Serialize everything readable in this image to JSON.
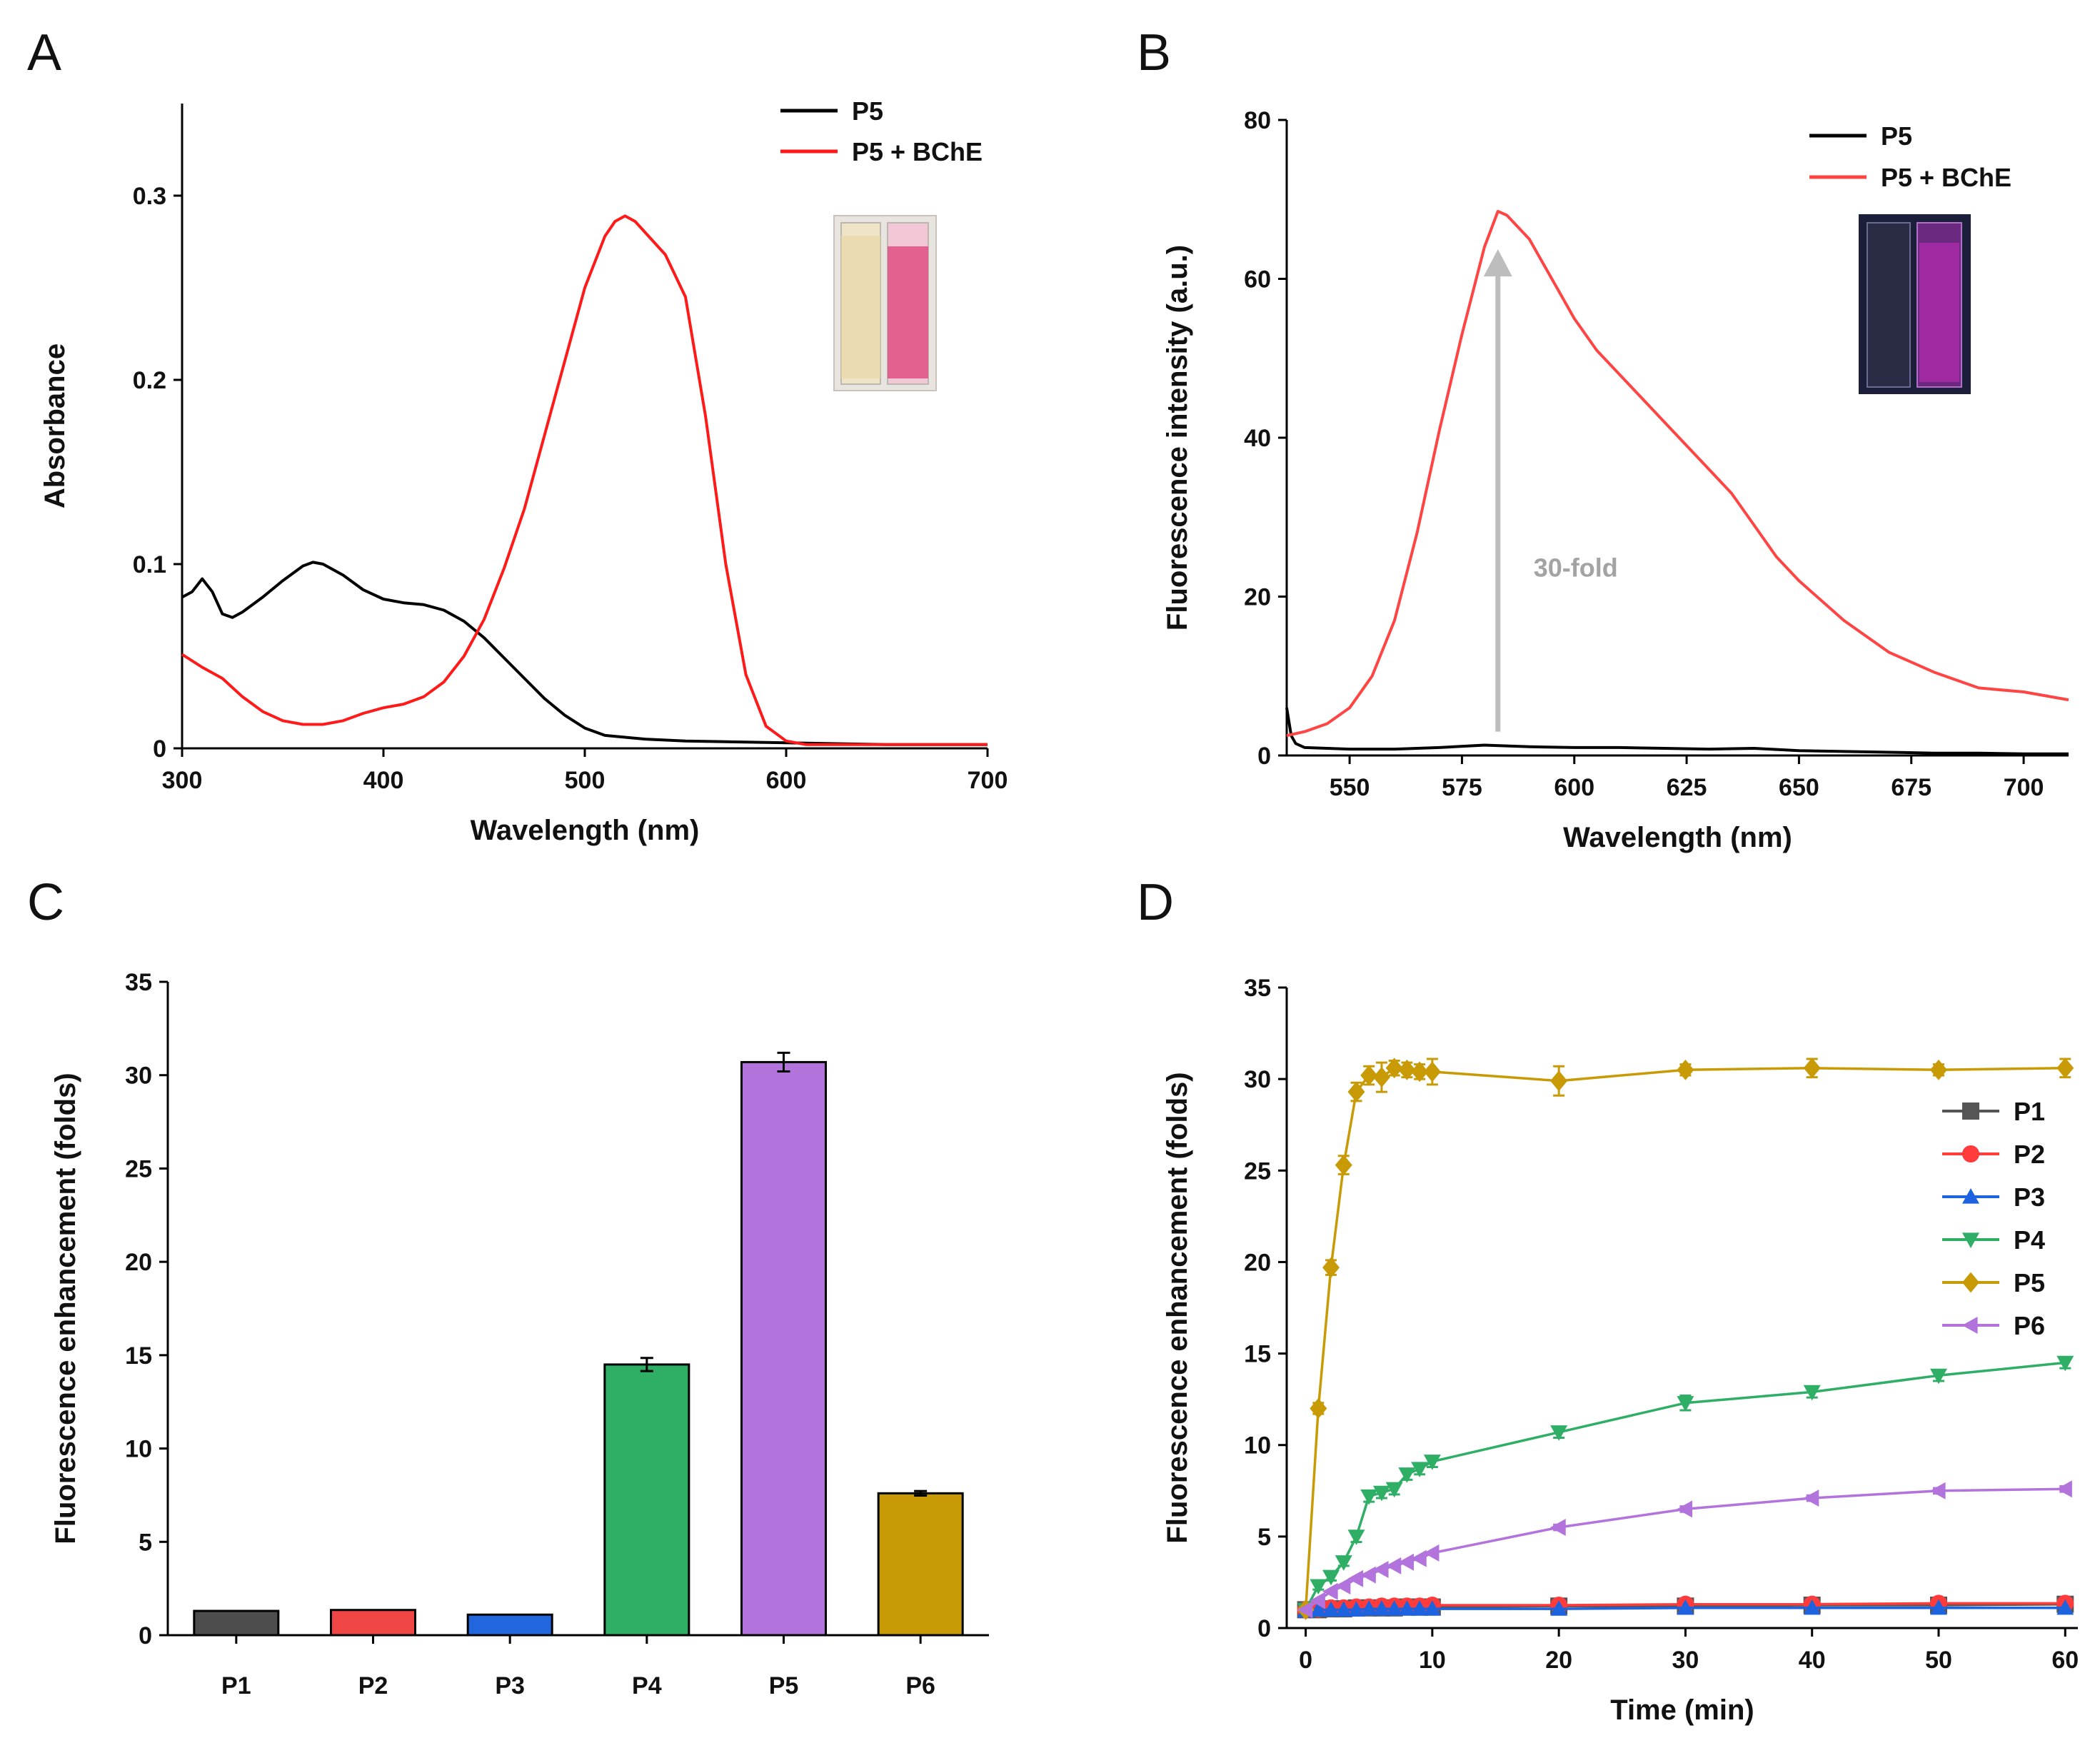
{
  "figure": {
    "panel_letters": [
      "A",
      "B",
      "C",
      "D"
    ]
  },
  "chart_data": [
    {
      "panel": "A",
      "type": "line",
      "title": "",
      "xlabel": "Wavelength (nm)",
      "ylabel": "Absorbance",
      "xlim": [
        300,
        700
      ],
      "ylim": [
        0,
        0.35
      ],
      "xticks": [
        300,
        400,
        500,
        600,
        700
      ],
      "yticks": [
        0,
        0.1,
        0.2,
        0.3
      ],
      "ytick_labels": [
        "0",
        "0.1",
        "0.2",
        "0.3"
      ],
      "legend_position": "top-right",
      "inset": "photo of two cuvettes: pale yellow (P5) and pink (P5 + BChE)",
      "series": [
        {
          "name": "P5",
          "color": "#000000",
          "x": [
            300,
            305,
            310,
            315,
            320,
            325,
            330,
            340,
            350,
            360,
            365,
            370,
            380,
            390,
            400,
            410,
            420,
            430,
            440,
            450,
            460,
            470,
            480,
            490,
            500,
            510,
            520,
            530,
            550,
            600,
            650,
            700
          ],
          "y": [
            0.082,
            0.085,
            0.092,
            0.085,
            0.073,
            0.071,
            0.074,
            0.082,
            0.091,
            0.099,
            0.101,
            0.1,
            0.094,
            0.086,
            0.081,
            0.079,
            0.078,
            0.075,
            0.069,
            0.06,
            0.049,
            0.038,
            0.027,
            0.018,
            0.011,
            0.007,
            0.006,
            0.005,
            0.004,
            0.003,
            0.002,
            0.002
          ]
        },
        {
          "name": "P5 + BChE",
          "color": "#ff1a1a",
          "x": [
            300,
            310,
            320,
            330,
            340,
            350,
            360,
            370,
            380,
            390,
            400,
            410,
            420,
            430,
            440,
            450,
            460,
            470,
            480,
            490,
            500,
            510,
            515,
            520,
            525,
            530,
            540,
            550,
            560,
            570,
            580,
            590,
            600,
            610,
            620,
            650,
            700
          ],
          "y": [
            0.051,
            0.044,
            0.038,
            0.028,
            0.02,
            0.015,
            0.013,
            0.013,
            0.015,
            0.019,
            0.022,
            0.024,
            0.028,
            0.036,
            0.05,
            0.07,
            0.098,
            0.13,
            0.17,
            0.21,
            0.25,
            0.278,
            0.286,
            0.289,
            0.286,
            0.28,
            0.268,
            0.245,
            0.18,
            0.1,
            0.04,
            0.012,
            0.004,
            0.002,
            0.002,
            0.002,
            0.002
          ]
        }
      ]
    },
    {
      "panel": "B",
      "type": "line",
      "title": "",
      "xlabel": "Wavelength (nm)",
      "ylabel": "Fluorescence intensity (a.u.)",
      "xlim": [
        536,
        710
      ],
      "ylim": [
        0,
        80
      ],
      "xticks": [
        550,
        575,
        600,
        625,
        650,
        675,
        700
      ],
      "yticks": [
        0,
        20,
        40,
        60,
        80
      ],
      "legend_position": "top-right",
      "annotation": "30-fold",
      "annotation_arrow": {
        "x": 583,
        "y_from": 3,
        "y_to": 63
      },
      "inset": "photo of two cuvettes under UV light: dark (P5) and magenta glow (P5 + BChE)",
      "series": [
        {
          "name": "P5",
          "color": "#000000",
          "x": [
            536,
            537,
            538,
            540,
            545,
            550,
            560,
            570,
            580,
            590,
            600,
            610,
            620,
            630,
            640,
            650,
            660,
            670,
            680,
            690,
            700,
            710
          ],
          "y": [
            6,
            2.5,
            1.5,
            1.0,
            0.9,
            0.8,
            0.8,
            1.0,
            1.3,
            1.1,
            1.0,
            1.0,
            0.9,
            0.8,
            0.9,
            0.6,
            0.5,
            0.4,
            0.3,
            0.3,
            0.2,
            0.2
          ]
        },
        {
          "name": "P5 + BChE",
          "color": "#ff4444",
          "x": [
            536,
            540,
            545,
            550,
            555,
            560,
            565,
            570,
            575,
            580,
            583,
            585,
            590,
            595,
            600,
            605,
            610,
            615,
            620,
            625,
            630,
            635,
            640,
            645,
            650,
            660,
            670,
            680,
            690,
            700,
            710
          ],
          "y": [
            2.5,
            3,
            4,
            6,
            10,
            17,
            28,
            41,
            53,
            64,
            68.5,
            68,
            65,
            60,
            55,
            51,
            48,
            45,
            42,
            39,
            36,
            33,
            29,
            25,
            22,
            17,
            13,
            10.5,
            8.5,
            8,
            7
          ]
        }
      ]
    },
    {
      "panel": "C",
      "type": "bar",
      "title": "",
      "xlabel": "",
      "ylabel": "Fluorescence enhancement (folds)",
      "ylim": [
        0,
        35
      ],
      "yticks": [
        0,
        5,
        10,
        15,
        20,
        25,
        30,
        35
      ],
      "categories": [
        "P1",
        "P2",
        "P3",
        "P4",
        "P5",
        "P6"
      ],
      "values": [
        1.3,
        1.35,
        1.1,
        14.5,
        30.7,
        7.6
      ],
      "errors": [
        0.05,
        0.05,
        0.05,
        0.35,
        0.5,
        0.12
      ],
      "colors": [
        "#4d4d4d",
        "#f04545",
        "#2266dd",
        "#2fae66",
        "#b273dd",
        "#c89a05"
      ]
    },
    {
      "panel": "D",
      "type": "line",
      "title": "",
      "xlabel": "Time (min)",
      "ylabel": "Fluorescence enhancement (folds)",
      "xlim": [
        -1.5,
        61
      ],
      "ylim": [
        0,
        35
      ],
      "xticks": [
        0,
        10,
        20,
        30,
        40,
        50,
        60
      ],
      "yticks": [
        0,
        5,
        10,
        15,
        20,
        25,
        30,
        35
      ],
      "legend_position": "right",
      "series": [
        {
          "name": "P1",
          "marker": "square",
          "color": "#555555",
          "x": [
            0,
            1,
            2,
            3,
            4,
            5,
            6,
            7,
            8,
            9,
            10,
            20,
            30,
            40,
            50,
            60
          ],
          "y": [
            1.0,
            1.0,
            1.05,
            1.05,
            1.1,
            1.1,
            1.1,
            1.1,
            1.15,
            1.15,
            1.15,
            1.2,
            1.2,
            1.25,
            1.25,
            1.3
          ]
        },
        {
          "name": "P2",
          "marker": "circle",
          "color": "#ff3b3b",
          "x": [
            0,
            1,
            2,
            3,
            4,
            5,
            6,
            7,
            8,
            9,
            10,
            20,
            30,
            40,
            50,
            60
          ],
          "y": [
            1.0,
            1.05,
            1.1,
            1.1,
            1.15,
            1.15,
            1.2,
            1.2,
            1.2,
            1.2,
            1.25,
            1.25,
            1.3,
            1.3,
            1.35,
            1.35
          ]
        },
        {
          "name": "P3",
          "marker": "triangle-up",
          "color": "#1d63e0",
          "x": [
            0,
            1,
            2,
            3,
            4,
            5,
            6,
            7,
            8,
            9,
            10,
            20,
            30,
            40,
            50,
            60
          ],
          "y": [
            0.95,
            1.0,
            1.0,
            1.0,
            1.0,
            1.05,
            1.05,
            1.05,
            1.05,
            1.05,
            1.05,
            1.05,
            1.1,
            1.1,
            1.1,
            1.1
          ]
        },
        {
          "name": "P4",
          "marker": "triangle-down",
          "color": "#2fae66",
          "x": [
            0,
            1,
            2,
            3,
            4,
            5,
            6,
            7,
            8,
            9,
            10,
            20,
            30,
            40,
            50,
            60
          ],
          "y": [
            1.0,
            2.3,
            2.8,
            3.6,
            5.0,
            7.2,
            7.4,
            7.6,
            8.4,
            8.7,
            9.1,
            10.7,
            12.3,
            12.9,
            13.8,
            14.5
          ],
          "errors": [
            0.1,
            0.2,
            0.2,
            0.2,
            0.3,
            0.3,
            0.3,
            0.3,
            0.3,
            0.3,
            0.3,
            0.3,
            0.4,
            0.3,
            0.3,
            0.3
          ]
        },
        {
          "name": "P5",
          "marker": "diamond",
          "color": "#c89a05",
          "x": [
            0,
            1,
            2,
            3,
            4,
            5,
            6,
            7,
            8,
            9,
            10,
            20,
            30,
            40,
            50,
            60
          ],
          "y": [
            1.0,
            12.0,
            19.7,
            25.3,
            29.3,
            30.2,
            30.1,
            30.6,
            30.5,
            30.4,
            30.4,
            29.9,
            30.5,
            30.6,
            30.5,
            30.6
          ],
          "errors": [
            0.1,
            0.3,
            0.4,
            0.5,
            0.5,
            0.5,
            0.8,
            0.4,
            0.4,
            0.4,
            0.7,
            0.8,
            0.3,
            0.5,
            0.3,
            0.5
          ]
        },
        {
          "name": "P6",
          "marker": "triangle-left",
          "color": "#b273dd",
          "x": [
            0,
            1,
            2,
            3,
            4,
            5,
            6,
            7,
            8,
            9,
            10,
            20,
            30,
            40,
            50,
            60
          ],
          "y": [
            1.0,
            1.5,
            2.0,
            2.3,
            2.7,
            2.9,
            3.2,
            3.4,
            3.6,
            3.8,
            4.1,
            5.5,
            6.5,
            7.1,
            7.5,
            7.6
          ],
          "errors": [
            0.05,
            0.1,
            0.1,
            0.1,
            0.1,
            0.1,
            0.1,
            0.1,
            0.1,
            0.1,
            0.1,
            0.15,
            0.15,
            0.15,
            0.15,
            0.15
          ]
        }
      ]
    }
  ]
}
